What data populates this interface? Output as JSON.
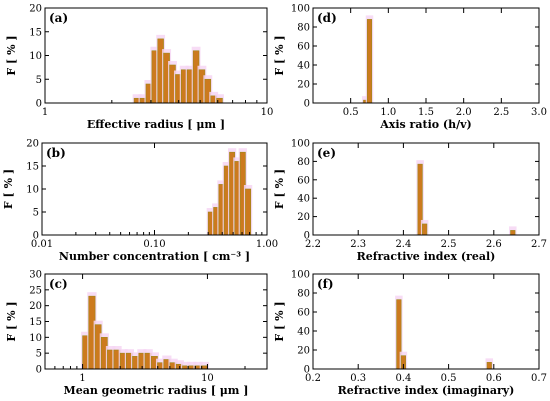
{
  "figure": {
    "colors": {
      "bar_fill": "#cc7a1e",
      "bar_edge": "#9a8a1a",
      "glow": "#f6d6f3"
    },
    "y_axis_label": "F [ % ]"
  },
  "chart_data": [
    {
      "id": "a",
      "panel_label": "(a)",
      "type": "bar",
      "xlabel": "Effective radius [ μm ]",
      "ylabel": "F [ % ]",
      "x_scale": "log",
      "xlim": [
        1,
        10
      ],
      "ylim": [
        0,
        20
      ],
      "x_ticks": [
        1,
        10
      ],
      "x_tick_labels": [
        "1",
        "10"
      ],
      "y_ticks": [
        0,
        5,
        10,
        15,
        20
      ],
      "y_tick_labels": [
        "0",
        "5",
        "10",
        "15",
        "20"
      ],
      "bins": [
        {
          "x0": 2.52,
          "x1": 2.68,
          "value": 1
        },
        {
          "x0": 2.68,
          "x1": 2.85,
          "value": 1
        },
        {
          "x0": 2.85,
          "x1": 3.03,
          "value": 4
        },
        {
          "x0": 3.03,
          "x1": 3.22,
          "value": 11
        },
        {
          "x0": 3.22,
          "x1": 3.42,
          "value": 13.5
        },
        {
          "x0": 3.42,
          "x1": 3.64,
          "value": 10.5
        },
        {
          "x0": 3.64,
          "x1": 3.87,
          "value": 8
        },
        {
          "x0": 3.87,
          "x1": 4.11,
          "value": 6
        },
        {
          "x0": 4.11,
          "x1": 4.37,
          "value": 7
        },
        {
          "x0": 4.37,
          "x1": 4.65,
          "value": 7
        },
        {
          "x0": 4.65,
          "x1": 4.94,
          "value": 11
        },
        {
          "x0": 4.94,
          "x1": 5.25,
          "value": 7
        },
        {
          "x0": 5.25,
          "x1": 5.58,
          "value": 5
        },
        {
          "x0": 5.58,
          "x1": 5.93,
          "value": 1.5
        },
        {
          "x0": 5.93,
          "x1": 6.3,
          "value": 1
        }
      ]
    },
    {
      "id": "d",
      "panel_label": "(d)",
      "type": "bar",
      "xlabel": "Axis ratio (h/v)",
      "ylabel": "F [ % ]",
      "x_scale": "linear",
      "xlim": [
        0.0,
        3.0
      ],
      "ylim": [
        0,
        100
      ],
      "x_ticks": [
        0.5,
        1.0,
        1.5,
        2.0,
        2.5,
        3.0
      ],
      "x_tick_labels": [
        "0.5",
        "1.0",
        "1.5",
        "2.0",
        "2.5",
        "3.0"
      ],
      "y_ticks": [
        0,
        20,
        40,
        60,
        80,
        100
      ],
      "y_tick_labels": [
        "0",
        "20",
        "40",
        "60",
        "80",
        "100"
      ],
      "bins": [
        {
          "x0": 0.67,
          "x1": 0.72,
          "value": 3
        },
        {
          "x0": 0.72,
          "x1": 0.78,
          "value": 88
        }
      ]
    },
    {
      "id": "b",
      "panel_label": "(b)",
      "type": "bar",
      "xlabel": "Number concentration [ cm⁻³ ]",
      "ylabel": "F [ % ]",
      "x_scale": "log",
      "xlim": [
        0.01,
        1.0
      ],
      "ylim": [
        0,
        20
      ],
      "x_ticks": [
        0.01,
        0.1,
        1.0
      ],
      "x_tick_labels": [
        "0.01",
        "0.10",
        "1.00"
      ],
      "y_ticks": [
        0,
        5,
        10,
        15,
        20
      ],
      "y_tick_labels": [
        "0",
        "5",
        "10",
        "15",
        "20"
      ],
      "bins": [
        {
          "x0": 0.3,
          "x1": 0.335,
          "value": 5
        },
        {
          "x0": 0.335,
          "x1": 0.373,
          "value": 6
        },
        {
          "x0": 0.373,
          "x1": 0.416,
          "value": 11
        },
        {
          "x0": 0.416,
          "x1": 0.464,
          "value": 15
        },
        {
          "x0": 0.464,
          "x1": 0.517,
          "value": 18
        },
        {
          "x0": 0.517,
          "x1": 0.577,
          "value": 16
        },
        {
          "x0": 0.577,
          "x1": 0.643,
          "value": 18
        },
        {
          "x0": 0.643,
          "x1": 0.717,
          "value": 10
        }
      ]
    },
    {
      "id": "e",
      "panel_label": "(e)",
      "type": "bar",
      "xlabel": "Refractive index (real)",
      "ylabel": "F [ % ]",
      "x_scale": "linear",
      "xlim": [
        2.2,
        2.7
      ],
      "ylim": [
        0,
        100
      ],
      "x_ticks": [
        2.2,
        2.3,
        2.4,
        2.5,
        2.6,
        2.7
      ],
      "x_tick_labels": [
        "2.2",
        "2.3",
        "2.4",
        "2.5",
        "2.6",
        "2.7"
      ],
      "y_ticks": [
        0,
        20,
        40,
        60,
        80,
        100
      ],
      "y_tick_labels": [
        "0",
        "20",
        "40",
        "60",
        "80",
        "100"
      ],
      "bins": [
        {
          "x0": 2.432,
          "x1": 2.442,
          "value": 77
        },
        {
          "x0": 2.442,
          "x1": 2.452,
          "value": 12
        },
        {
          "x0": 2.637,
          "x1": 2.647,
          "value": 5
        }
      ]
    },
    {
      "id": "c",
      "panel_label": "(c)",
      "type": "bar",
      "xlabel": "Mean geometric radius [ μm ]",
      "ylabel": "F [ % ]",
      "x_scale": "log",
      "xlim": [
        0.5,
        30
      ],
      "ylim": [
        0,
        30
      ],
      "x_ticks": [
        1,
        10
      ],
      "x_tick_labels": [
        "1",
        "10"
      ],
      "y_ticks": [
        0,
        5,
        10,
        15,
        20,
        25,
        30
      ],
      "y_tick_labels": [
        "0",
        "5",
        "10",
        "15",
        "20",
        "25",
        "30"
      ],
      "bins": [
        {
          "x0": 1.0,
          "x1": 1.12,
          "value": 10.5
        },
        {
          "x0": 1.12,
          "x1": 1.26,
          "value": 23
        },
        {
          "x0": 1.26,
          "x1": 1.41,
          "value": 14
        },
        {
          "x0": 1.41,
          "x1": 1.58,
          "value": 10
        },
        {
          "x0": 1.58,
          "x1": 1.78,
          "value": 6
        },
        {
          "x0": 1.78,
          "x1": 2.0,
          "value": 6
        },
        {
          "x0": 2.0,
          "x1": 2.24,
          "value": 5
        },
        {
          "x0": 2.24,
          "x1": 2.51,
          "value": 5
        },
        {
          "x0": 2.51,
          "x1": 2.82,
          "value": 4
        },
        {
          "x0": 2.82,
          "x1": 3.16,
          "value": 5
        },
        {
          "x0": 3.16,
          "x1": 3.55,
          "value": 5
        },
        {
          "x0": 3.55,
          "x1": 3.98,
          "value": 4
        },
        {
          "x0": 3.98,
          "x1": 4.47,
          "value": 2
        },
        {
          "x0": 4.47,
          "x1": 5.01,
          "value": 3
        },
        {
          "x0": 5.01,
          "x1": 5.62,
          "value": 2
        },
        {
          "x0": 5.62,
          "x1": 6.31,
          "value": 1.5
        },
        {
          "x0": 6.31,
          "x1": 7.08,
          "value": 1
        },
        {
          "x0": 7.08,
          "x1": 7.94,
          "value": 1
        },
        {
          "x0": 7.94,
          "x1": 8.91,
          "value": 1
        },
        {
          "x0": 8.91,
          "x1": 10.0,
          "value": 1
        }
      ]
    },
    {
      "id": "f",
      "panel_label": "(f)",
      "type": "bar",
      "xlabel": "Refractive index (imaginary)",
      "ylabel": "F [ % ]",
      "x_scale": "linear",
      "xlim": [
        0.2,
        0.7
      ],
      "ylim": [
        0,
        100
      ],
      "x_ticks": [
        0.2,
        0.3,
        0.4,
        0.5,
        0.6,
        0.7
      ],
      "x_tick_labels": [
        "0.2",
        "0.3",
        "0.4",
        "0.5",
        "0.6",
        "0.7"
      ],
      "y_ticks": [
        0,
        20,
        40,
        60,
        80,
        100
      ],
      "y_tick_labels": [
        "0",
        "20",
        "40",
        "60",
        "80",
        "100"
      ],
      "bins": [
        {
          "x0": 0.385,
          "x1": 0.395,
          "value": 73
        },
        {
          "x0": 0.395,
          "x1": 0.405,
          "value": 14
        },
        {
          "x0": 0.585,
          "x1": 0.595,
          "value": 7
        }
      ]
    }
  ]
}
